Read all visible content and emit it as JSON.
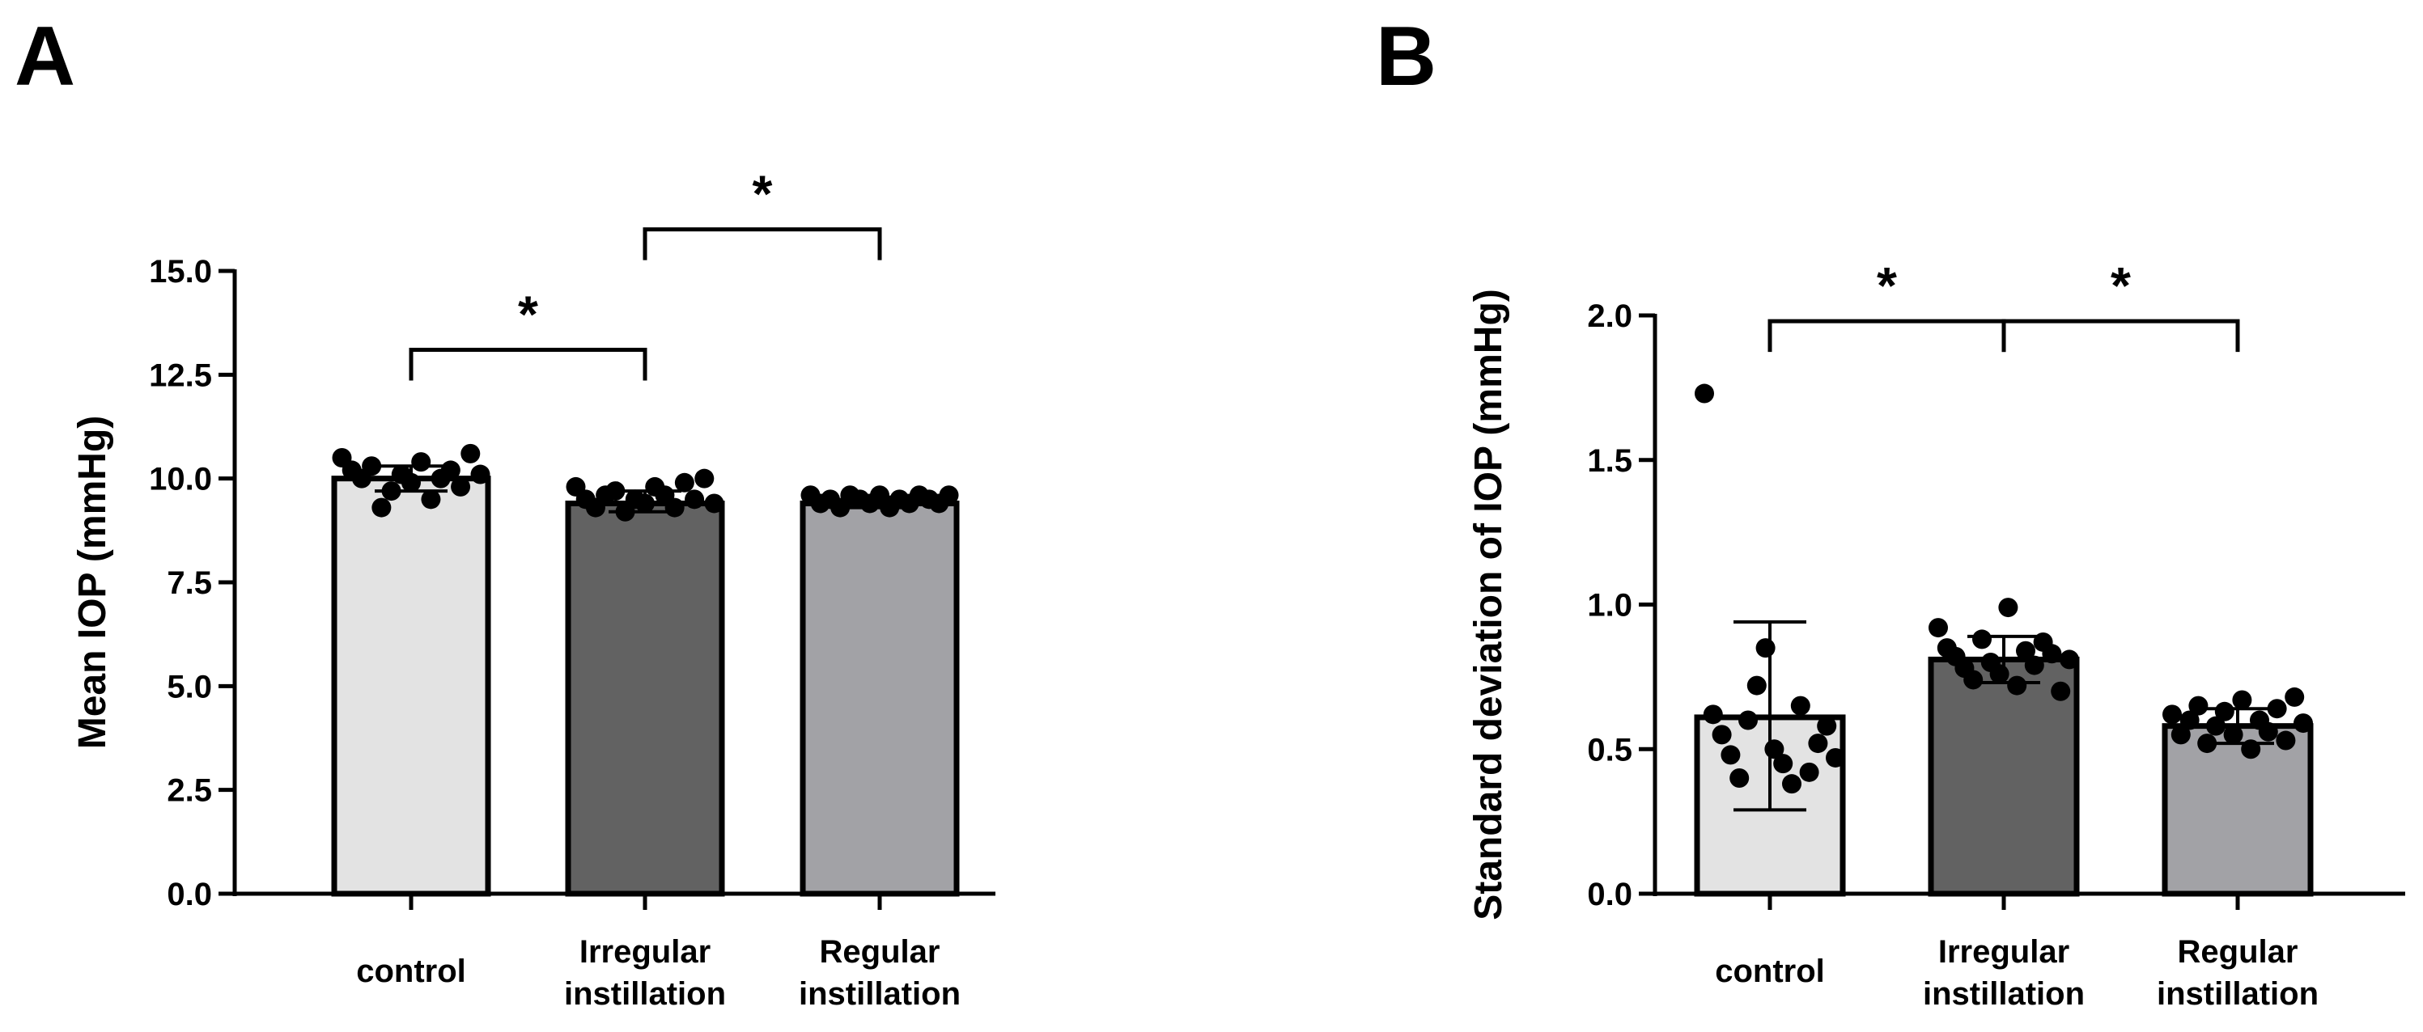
{
  "figure": {
    "panel_labels": [
      "A",
      "B"
    ]
  },
  "chart_data": [
    {
      "panel": "A",
      "type": "bar",
      "title": "",
      "xlabel": "",
      "ylabel": "Mean IOP (mmHg)",
      "ylim": [
        0,
        15
      ],
      "yticks": [
        0,
        2.5,
        5,
        7.5,
        10,
        12.5,
        15
      ],
      "ytick_labels": [
        "0.0",
        "2.5",
        "5.0",
        "7.5",
        "10.0",
        "12.5",
        "15.0"
      ],
      "categories": [
        {
          "line1": "control",
          "line2": ""
        },
        {
          "line1": "Irregular",
          "line2": "instillation"
        },
        {
          "line1": "Regular",
          "line2": "instillation"
        }
      ],
      "values": [
        10.0,
        9.4,
        9.4
      ],
      "error_low": [
        9.7,
        9.2,
        9.3
      ],
      "error_high": [
        10.3,
        9.7,
        9.55
      ],
      "colors": [
        "#e3e3e3",
        "#626262",
        "#a2a2a6"
      ],
      "points": [
        [
          10.5,
          10.2,
          10.0,
          10.3,
          9.3,
          9.7,
          10.1,
          9.9,
          10.4,
          9.5,
          10.0,
          10.2,
          9.8,
          10.6,
          10.1
        ],
        [
          9.8,
          9.5,
          9.3,
          9.6,
          9.7,
          9.2,
          9.5,
          9.4,
          9.8,
          9.6,
          9.3,
          9.9,
          9.5,
          10.0,
          9.4
        ],
        [
          9.6,
          9.4,
          9.5,
          9.3,
          9.6,
          9.5,
          9.4,
          9.6,
          9.3,
          9.5,
          9.4,
          9.6,
          9.5,
          9.4,
          9.6
        ]
      ],
      "significance": [
        {
          "from": 0,
          "to": 1,
          "y": 13.1,
          "label": "*"
        },
        {
          "from": 1,
          "to": 2,
          "y": 16.0,
          "label": "*"
        }
      ]
    },
    {
      "panel": "B",
      "type": "bar",
      "title": "",
      "xlabel": "",
      "ylabel": "Standard deviation of IOP (mmHg)",
      "ylim": [
        0,
        2.0
      ],
      "yticks": [
        0,
        0.5,
        1.0,
        1.5,
        2.0
      ],
      "ytick_labels": [
        "0.0",
        "0.5",
        "1.0",
        "1.5",
        "2.0"
      ],
      "categories": [
        {
          "line1": "control",
          "line2": ""
        },
        {
          "line1": "Irregular",
          "line2": "instillation"
        },
        {
          "line1": "Regular",
          "line2": "instillation"
        }
      ],
      "values": [
        0.61,
        0.81,
        0.58
      ],
      "error_low": [
        0.29,
        0.73,
        0.52
      ],
      "error_high": [
        0.94,
        0.89,
        0.64
      ],
      "colors": [
        "#e3e3e3",
        "#626262",
        "#a2a2a6"
      ],
      "points": [
        [
          1.73,
          0.62,
          0.55,
          0.48,
          0.4,
          0.6,
          0.72,
          0.85,
          0.5,
          0.45,
          0.38,
          0.65,
          0.42,
          0.52,
          0.58,
          0.47
        ],
        [
          0.92,
          0.85,
          0.82,
          0.78,
          0.74,
          0.88,
          0.8,
          0.76,
          0.99,
          0.72,
          0.84,
          0.79,
          0.87,
          0.83,
          0.7,
          0.81
        ],
        [
          0.62,
          0.55,
          0.6,
          0.65,
          0.52,
          0.58,
          0.63,
          0.55,
          0.67,
          0.5,
          0.6,
          0.56,
          0.64,
          0.53,
          0.68,
          0.59
        ]
      ],
      "significance": [
        {
          "from": 0,
          "to": 1,
          "y": 1.98,
          "label": "*"
        },
        {
          "from": 1,
          "to": 2,
          "y": 1.98,
          "label": "*"
        }
      ]
    }
  ]
}
